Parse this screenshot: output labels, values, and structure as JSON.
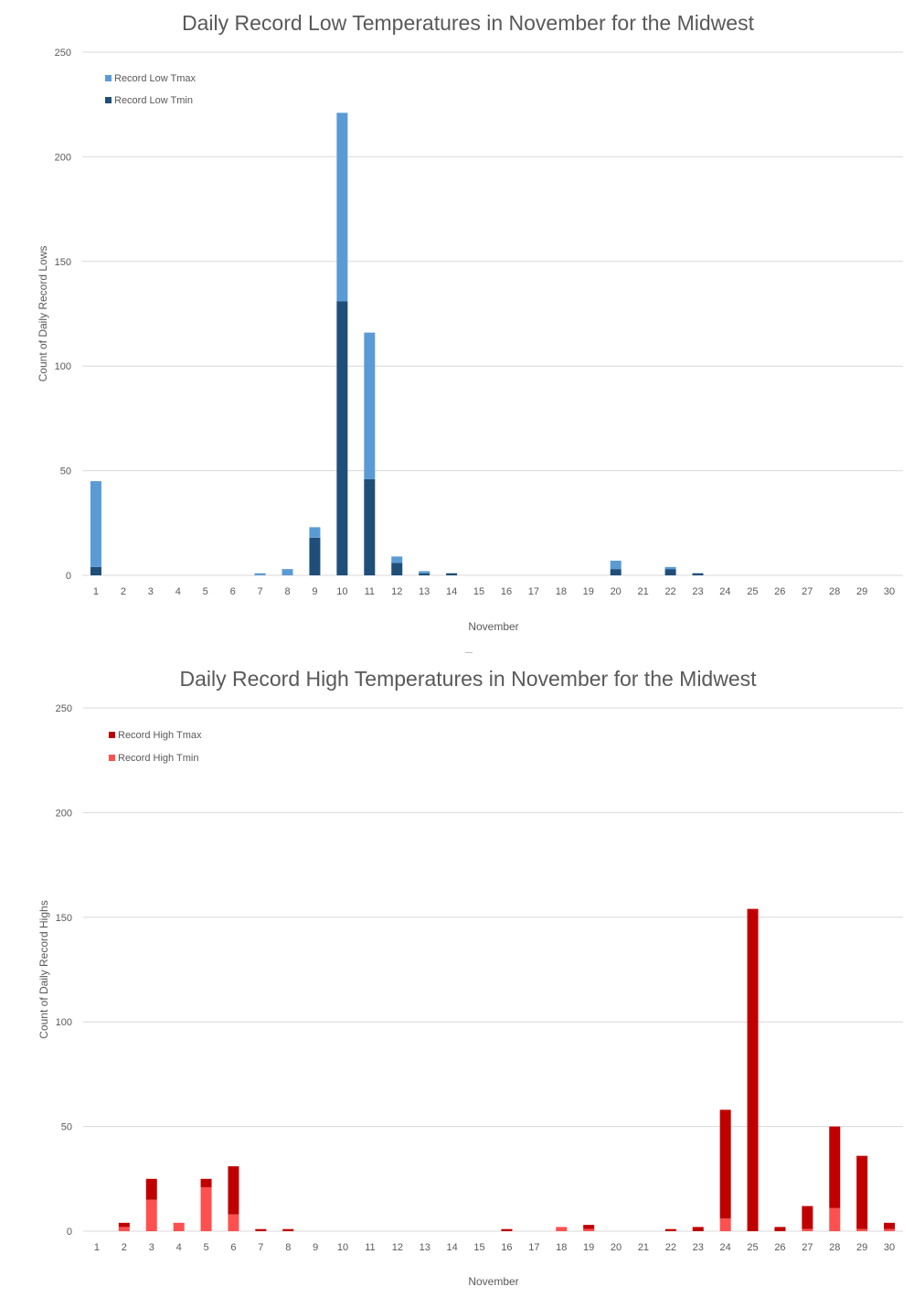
{
  "chart_data": [
    {
      "type": "bar",
      "stacked": true,
      "title": "Daily Record Low Temperatures in November for the Midwest",
      "xlabel": "November",
      "ylabel": "Count of Daily Record Lows",
      "ylim": [
        0,
        250
      ],
      "yticks": [
        0,
        50,
        100,
        150,
        200,
        250
      ],
      "grid": true,
      "legend_position": "top-left",
      "categories": [
        "1",
        "2",
        "3",
        "4",
        "5",
        "6",
        "7",
        "8",
        "9",
        "10",
        "11",
        "12",
        "13",
        "14",
        "15",
        "16",
        "17",
        "18",
        "19",
        "20",
        "21",
        "22",
        "23",
        "24",
        "25",
        "26",
        "27",
        "28",
        "29",
        "30"
      ],
      "series": [
        {
          "name": "Record Low Tmin",
          "color": "#1f4e79",
          "values": [
            4,
            0,
            0,
            0,
            0,
            0,
            0,
            0,
            18,
            131,
            46,
            6,
            1,
            1,
            0,
            0,
            0,
            0,
            0,
            3,
            0,
            3,
            1,
            0,
            0,
            0,
            0,
            0,
            0,
            0
          ]
        },
        {
          "name": "Record Low Tmax",
          "color": "#5b9bd5",
          "values": [
            41,
            0,
            0,
            0,
            0,
            0,
            1,
            3,
            5,
            90,
            70,
            3,
            1,
            0,
            0,
            0,
            0,
            0,
            0,
            4,
            0,
            1,
            0,
            0,
            0,
            0,
            0,
            0,
            0,
            0
          ]
        }
      ],
      "legend_order": [
        "Record Low Tmax",
        "Record Low Tmin"
      ]
    },
    {
      "type": "bar",
      "stacked": true,
      "title": "Daily Record High Temperatures in November for the Midwest",
      "xlabel": "November",
      "ylabel": "Count of Daily Record Highs",
      "ylim": [
        0,
        250
      ],
      "yticks": [
        0,
        50,
        100,
        150,
        200,
        250
      ],
      "grid": true,
      "legend_position": "top-left",
      "categories": [
        "1",
        "2",
        "3",
        "4",
        "5",
        "6",
        "7",
        "8",
        "9",
        "10",
        "11",
        "12",
        "13",
        "14",
        "15",
        "16",
        "17",
        "18",
        "19",
        "20",
        "21",
        "22",
        "23",
        "24",
        "25",
        "26",
        "27",
        "28",
        "29",
        "30"
      ],
      "series": [
        {
          "name": "Record High Tmin",
          "color": "#ff5050",
          "values": [
            0,
            2,
            15,
            4,
            21,
            8,
            0,
            0,
            0,
            0,
            0,
            0,
            0,
            0,
            0,
            0,
            0,
            2,
            1,
            0,
            0,
            0,
            0,
            6,
            0,
            0,
            1,
            11,
            1,
            1
          ]
        },
        {
          "name": "Record High Tmax",
          "color": "#c00000",
          "values": [
            0,
            2,
            10,
            0,
            4,
            23,
            1,
            1,
            0,
            0,
            0,
            0,
            0,
            0,
            0,
            1,
            0,
            0,
            2,
            0,
            0,
            1,
            2,
            52,
            154,
            2,
            11,
            39,
            35,
            3
          ]
        }
      ],
      "legend_order": [
        "Record High Tmax",
        "Record High Tmin"
      ]
    }
  ]
}
